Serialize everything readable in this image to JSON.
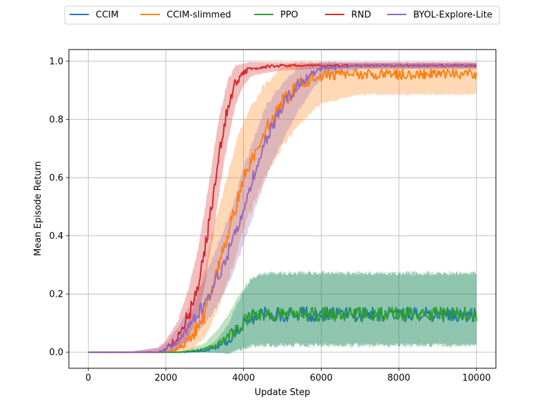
{
  "chart_data": {
    "type": "line",
    "title": "",
    "xlabel": "Update Step",
    "ylabel": "Mean Episode Return",
    "xlim": [
      -500,
      10500
    ],
    "ylim": [
      -0.055,
      1.04
    ],
    "xticks": [
      0,
      2000,
      4000,
      6000,
      8000,
      10000
    ],
    "xtick_labels": [
      "0",
      "2000",
      "4000",
      "6000",
      "8000",
      "10000"
    ],
    "yticks": [
      0.0,
      0.2,
      0.4,
      0.6,
      0.8,
      1.0
    ],
    "ytick_labels": [
      "0.0",
      "0.2",
      "0.4",
      "0.6",
      "0.8",
      "1.0"
    ],
    "grid": true,
    "legend_position": "top-center",
    "series": [
      {
        "name": "CCIM",
        "color": "#1f77b4",
        "x": [
          0,
          1000,
          2000,
          2500,
          3000,
          3300,
          3600,
          3800,
          4000,
          4200,
          4500,
          5000,
          6000,
          8000,
          10000
        ],
        "y": [
          0.0,
          0.0,
          0.0,
          0.0,
          0.005,
          0.015,
          0.035,
          0.07,
          0.1,
          0.12,
          0.13,
          0.13,
          0.13,
          0.13,
          0.13
        ],
        "band_low": [
          0.0,
          0.0,
          0.0,
          0.0,
          0.0,
          0.0,
          0.0,
          0.01,
          0.02,
          0.03,
          0.033,
          0.033,
          0.033,
          0.033,
          0.033
        ],
        "band_high": [
          0.0,
          0.0,
          0.0,
          0.0,
          0.01,
          0.04,
          0.09,
          0.15,
          0.2,
          0.24,
          0.262,
          0.262,
          0.262,
          0.262,
          0.262
        ]
      },
      {
        "name": "CCIM-slimmed",
        "color": "#ff7f0e",
        "x": [
          0,
          1000,
          2000,
          2200,
          2500,
          2800,
          3000,
          3200,
          3500,
          3800,
          4000,
          4500,
          5000,
          5500,
          6000,
          7000,
          8000,
          10000
        ],
        "y": [
          0.0,
          0.0,
          0.0,
          0.005,
          0.03,
          0.08,
          0.13,
          0.22,
          0.36,
          0.5,
          0.6,
          0.75,
          0.86,
          0.93,
          0.955,
          0.955,
          0.955,
          0.955
        ],
        "band_low": [
          0.0,
          0.0,
          0.0,
          0.0,
          0.0,
          0.03,
          0.06,
          0.12,
          0.22,
          0.34,
          0.44,
          0.6,
          0.72,
          0.8,
          0.86,
          0.89,
          0.89,
          0.89
        ],
        "band_high": [
          0.0,
          0.0,
          0.0,
          0.02,
          0.08,
          0.18,
          0.28,
          0.4,
          0.55,
          0.7,
          0.78,
          0.9,
          0.97,
          0.99,
          0.99,
          0.99,
          0.99,
          0.99
        ]
      },
      {
        "name": "PPO",
        "color": "#2ca02c",
        "x": [
          0,
          1000,
          2000,
          2300,
          2600,
          3000,
          3300,
          3600,
          3800,
          4000,
          4200,
          4500,
          5000,
          6000,
          8000,
          10000
        ],
        "y": [
          0.0,
          0.0,
          0.0,
          0.0,
          0.003,
          0.01,
          0.025,
          0.05,
          0.08,
          0.1,
          0.12,
          0.13,
          0.13,
          0.13,
          0.13,
          0.13
        ],
        "band_low": [
          0.0,
          0.0,
          0.0,
          0.0,
          0.0,
          0.0,
          0.0,
          0.0,
          0.01,
          0.02,
          0.03,
          0.033,
          0.033,
          0.033,
          0.033,
          0.033
        ],
        "band_high": [
          0.0,
          0.0,
          0.0,
          0.0,
          0.01,
          0.03,
          0.07,
          0.12,
          0.17,
          0.21,
          0.25,
          0.262,
          0.262,
          0.262,
          0.262,
          0.262
        ]
      },
      {
        "name": "RND",
        "color": "#d62728",
        "x": [
          0,
          1000,
          1800,
          2000,
          2300,
          2600,
          2800,
          3000,
          3200,
          3400,
          3600,
          3800,
          4000,
          4200,
          4500,
          5000,
          6000,
          8000,
          10000
        ],
        "y": [
          0.0,
          0.0,
          0.0,
          0.01,
          0.05,
          0.13,
          0.22,
          0.35,
          0.52,
          0.7,
          0.85,
          0.93,
          0.965,
          0.975,
          0.98,
          0.985,
          0.985,
          0.985,
          0.985
        ],
        "band_low": [
          0.0,
          0.0,
          0.0,
          0.0,
          0.01,
          0.06,
          0.13,
          0.24,
          0.4,
          0.58,
          0.74,
          0.86,
          0.92,
          0.95,
          0.96,
          0.97,
          0.975,
          0.975,
          0.975
        ],
        "band_high": [
          0.0,
          0.0,
          0.015,
          0.04,
          0.1,
          0.22,
          0.33,
          0.48,
          0.65,
          0.82,
          0.93,
          0.98,
          0.99,
          0.995,
          0.995,
          0.995,
          0.995,
          0.995,
          0.995
        ]
      },
      {
        "name": "BYOL-Explore-Lite",
        "color": "#9467bd",
        "x": [
          0,
          1000,
          1800,
          2000,
          2300,
          2600,
          3000,
          3300,
          3600,
          3800,
          4000,
          4300,
          4600,
          5000,
          5400,
          5800,
          6000,
          6500,
          7000,
          8000,
          10000
        ],
        "y": [
          0.0,
          0.0,
          0.0,
          0.01,
          0.04,
          0.09,
          0.17,
          0.25,
          0.34,
          0.42,
          0.5,
          0.62,
          0.74,
          0.84,
          0.92,
          0.96,
          0.975,
          0.98,
          0.985,
          0.985,
          0.985
        ],
        "band_low": [
          0.0,
          0.0,
          0.0,
          0.0,
          0.01,
          0.04,
          0.1,
          0.16,
          0.24,
          0.31,
          0.38,
          0.5,
          0.62,
          0.73,
          0.83,
          0.91,
          0.94,
          0.96,
          0.975,
          0.975,
          0.975
        ],
        "band_high": [
          0.0,
          0.0,
          0.015,
          0.03,
          0.08,
          0.15,
          0.25,
          0.35,
          0.45,
          0.53,
          0.62,
          0.74,
          0.84,
          0.92,
          0.97,
          0.99,
          0.995,
          0.995,
          0.995,
          0.995,
          0.995
        ]
      }
    ]
  }
}
